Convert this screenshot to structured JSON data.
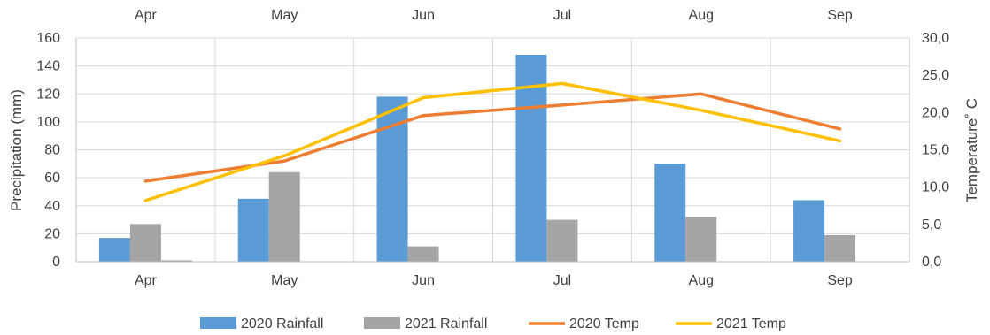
{
  "chart_data": {
    "type": "bar",
    "categories": [
      "Apr",
      "May",
      "Jun",
      "Jul",
      "Aug",
      "Sep"
    ],
    "ylabel": "Precipitation (mm)",
    "ylabel_right": "Temperature˚ C",
    "ylim": [
      0,
      160
    ],
    "ylim_right": [
      0,
      30
    ],
    "yticks": [
      "0",
      "20",
      "40",
      "60",
      "80",
      "100",
      "120",
      "140",
      "160"
    ],
    "yticks_right": [
      "0,0",
      "5,0",
      "10,0",
      "15,0",
      "20,0",
      "25,0",
      "30,0"
    ],
    "grid": true,
    "legend_position": "bottom",
    "bar_series": [
      {
        "name": "2020 Rainfall",
        "color": "#5b9bd5",
        "values": [
          17,
          45,
          118,
          148,
          70,
          44
        ]
      },
      {
        "name": "2021 Rainfall",
        "color": "#a5a5a5",
        "values": [
          27,
          64,
          11,
          30,
          32,
          19
        ]
      },
      {
        "name": "",
        "color": "#a5a5a5",
        "values": [
          1,
          0,
          0,
          0,
          0,
          0
        ]
      }
    ],
    "line_series": [
      {
        "name": "2020 Temp",
        "color": "#ed7d31",
        "axis": "right",
        "values": [
          10.8,
          13.5,
          19.6,
          21.0,
          22.5,
          17.8
        ]
      },
      {
        "name": "2021 Temp",
        "color": "#ffc000",
        "axis": "right",
        "values": [
          8.2,
          14.2,
          22.0,
          23.9,
          20.3,
          16.2
        ]
      }
    ],
    "legend": [
      {
        "label": "2020 Rainfall",
        "kind": "bar",
        "color": "#5b9bd5"
      },
      {
        "label": "2021 Rainfall",
        "kind": "bar",
        "color": "#a5a5a5"
      },
      {
        "label": "2020 Temp",
        "kind": "line",
        "color": "#ed7d31"
      },
      {
        "label": "2021 Temp",
        "kind": "line",
        "color": "#ffc000"
      }
    ]
  }
}
